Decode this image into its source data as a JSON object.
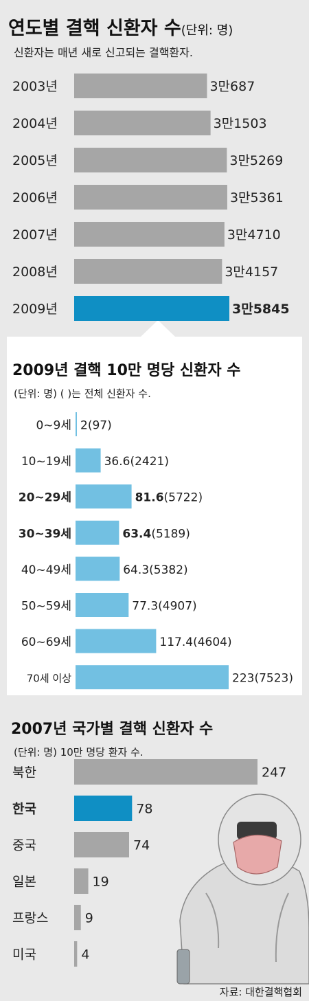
{
  "charts": [
    {
      "type": "bar",
      "title": "연도별 결핵 신환자 수",
      "title_unit": "(단위: 명)",
      "subtitle": "신환자는 매년 새로 신고되는 결핵환자.",
      "categories": [
        "2003년",
        "2004년",
        "2005년",
        "2006년",
        "2007년",
        "2008년",
        "2009년"
      ],
      "values": [
        30687,
        31503,
        35269,
        35361,
        34710,
        34157,
        35845
      ],
      "value_labels": [
        "3만687",
        "3만1503",
        "3만5269",
        "3만5361",
        "3만4710",
        "3만4157",
        "3만5845"
      ],
      "highlight_index": 6,
      "colors": {
        "bar": "#a6a6a6",
        "highlight": "#0f8fc4"
      }
    },
    {
      "type": "bar",
      "title": "2009년 결핵 10만 명당 신환자 수",
      "subtitle": "(단위: 명) ( )는 전체 신환자 수.",
      "categories": [
        "0~9세",
        "10~19세",
        "20~29세",
        "30~39세",
        "40~49세",
        "50~59세",
        "60~69세",
        "70세 이상"
      ],
      "values": [
        2,
        36.6,
        81.6,
        63.4,
        64.3,
        77.3,
        117.4,
        223
      ],
      "value_labels": [
        "2",
        "36.6",
        "81.6",
        "63.4",
        "64.3",
        "77.3",
        "117.4",
        "223"
      ],
      "totals": [
        "(97)",
        "(2421)",
        "(5722)",
        "(5189)",
        "(5382)",
        "(4907)",
        "(4604)",
        "(7523)"
      ],
      "bold_categories": [
        2,
        3
      ],
      "colors": {
        "bar": "#72c0e2"
      }
    },
    {
      "type": "bar",
      "title": "2007년 국가별 결핵 신환자 수",
      "subtitle": "(단위: 명) 10만 명당 환자 수.",
      "categories": [
        "북한",
        "한국",
        "중국",
        "일본",
        "프랑스",
        "미국"
      ],
      "values": [
        247,
        78,
        74,
        19,
        9,
        4
      ],
      "value_labels": [
        "247",
        "78",
        "74",
        "19",
        "9",
        "4"
      ],
      "highlight_index": 1,
      "colors": {
        "bar": "#a6a6a6",
        "highlight": "#0f8fc4"
      }
    }
  ],
  "source": "자료: 대한결핵협회",
  "photo_icon": "person-in-protective-suit-icon"
}
